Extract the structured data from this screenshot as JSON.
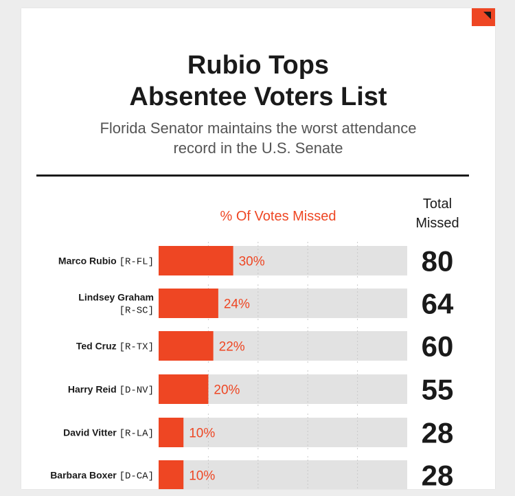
{
  "header": {
    "title_line1": "Rubio Tops",
    "title_line2": "Absentee Voters List",
    "subtitle_line1": "Florida Senator maintains the worst attendance",
    "subtitle_line2": "record in the U.S. Senate"
  },
  "colors": {
    "accent": "#ee4623",
    "track": "#e2e2e2",
    "text": "#1a1a1a"
  },
  "chart_data": {
    "type": "bar",
    "title": "Rubio Tops Absentee Voters List",
    "series_label": "% Of Votes Missed",
    "total_header_line1": "Total",
    "total_header_line2": "Missed",
    "xlim": [
      0,
      100
    ],
    "rows": [
      {
        "name": "Marco Rubio",
        "party": "[R-FL]",
        "pct": 30,
        "pct_label": "30%",
        "total": "80"
      },
      {
        "name": "Lindsey Graham",
        "party": "[R-SC]",
        "pct": 24,
        "pct_label": "24%",
        "total": "64"
      },
      {
        "name": "Ted Cruz",
        "party": "[R-TX]",
        "pct": 22,
        "pct_label": "22%",
        "total": "60"
      },
      {
        "name": "Harry Reid",
        "party": "[D-NV]",
        "pct": 20,
        "pct_label": "20%",
        "total": "55"
      },
      {
        "name": "David Vitter",
        "party": "[R-LA]",
        "pct": 10,
        "pct_label": "10%",
        "total": "28"
      },
      {
        "name": "Barbara Boxer",
        "party": "[D-CA]",
        "pct": 10,
        "pct_label": "10%",
        "total": "28"
      }
    ]
  }
}
